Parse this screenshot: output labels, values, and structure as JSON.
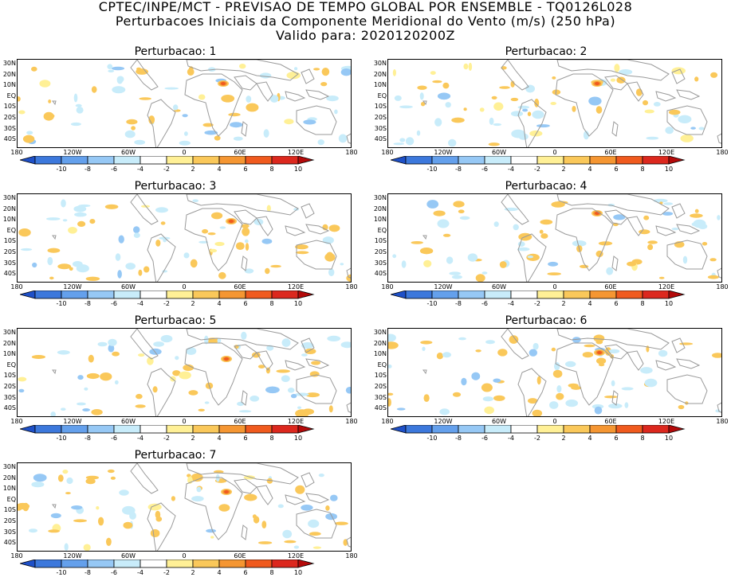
{
  "header": {
    "line1": "CPTEC/INPE/MCT - PREVISAO DE TEMPO GLOBAL POR ENSEMBLE - TQ0126L028",
    "line2": "Perturbacoes Iniciais da Componente Meridional do Vento (m/s) (250 hPa)",
    "line3": "Valido para: 2020120200Z"
  },
  "panels": [
    {
      "title": "Perturbacao: 1"
    },
    {
      "title": "Perturbacao: 2"
    },
    {
      "title": "Perturbacao: 3"
    },
    {
      "title": "Perturbacao: 4"
    },
    {
      "title": "Perturbacao: 5"
    },
    {
      "title": "Perturbacao: 6"
    },
    {
      "title": "Perturbacao: 7"
    }
  ],
  "lat_labels": [
    "30N",
    "20N",
    "10N",
    "EQ",
    "10S",
    "20S",
    "30S",
    "40S"
  ],
  "lon_labels": [
    "180",
    "120W",
    "60W",
    "0",
    "60E",
    "120E",
    "180"
  ],
  "colorbar": {
    "labels": [
      "-10",
      "-8",
      "-6",
      "-4",
      "-2",
      "2",
      "4",
      "6",
      "8",
      "10"
    ],
    "colors": [
      "#1e50c8",
      "#3c78dc",
      "#64a0ec",
      "#96c8f5",
      "#c8ecfa",
      "#ffffff",
      "#fff096",
      "#fac85a",
      "#f59632",
      "#f05a1e",
      "#dc281e",
      "#b40a0a"
    ]
  }
}
